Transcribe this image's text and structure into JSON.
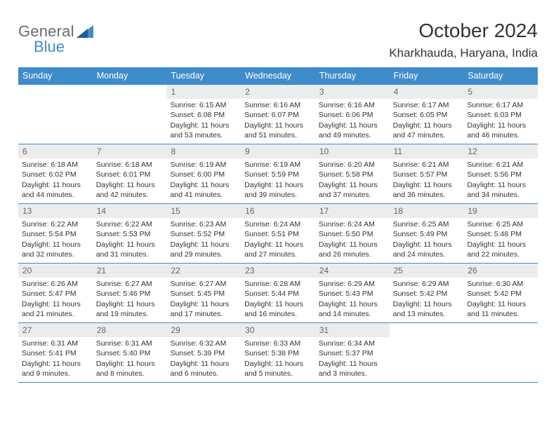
{
  "brand": {
    "part1": "General",
    "part2": "Blue"
  },
  "title": "October 2024",
  "location": "Kharkhauda, Haryana, India",
  "style": {
    "accent": "#3f8ccb",
    "daynum_bg": "#ececec",
    "daynum_color": "#666666",
    "text_color": "#333333",
    "logo_grey": "#6b6b6b",
    "background": "#ffffff",
    "title_fontsize": 28,
    "location_fontsize": 17,
    "weekday_fontsize": 12.5,
    "cell_fontsize": 10.5,
    "cell_min_height": 84
  },
  "weekdays": [
    "Sunday",
    "Monday",
    "Tuesday",
    "Wednesday",
    "Thursday",
    "Friday",
    "Saturday"
  ],
  "first_weekday_index": 2,
  "days": [
    {
      "n": 1,
      "sunrise": "6:15 AM",
      "sunset": "6:08 PM",
      "dl_h": 11,
      "dl_m": 53
    },
    {
      "n": 2,
      "sunrise": "6:16 AM",
      "sunset": "6:07 PM",
      "dl_h": 11,
      "dl_m": 51
    },
    {
      "n": 3,
      "sunrise": "6:16 AM",
      "sunset": "6:06 PM",
      "dl_h": 11,
      "dl_m": 49
    },
    {
      "n": 4,
      "sunrise": "6:17 AM",
      "sunset": "6:05 PM",
      "dl_h": 11,
      "dl_m": 47
    },
    {
      "n": 5,
      "sunrise": "6:17 AM",
      "sunset": "6:03 PM",
      "dl_h": 11,
      "dl_m": 46
    },
    {
      "n": 6,
      "sunrise": "6:18 AM",
      "sunset": "6:02 PM",
      "dl_h": 11,
      "dl_m": 44
    },
    {
      "n": 7,
      "sunrise": "6:18 AM",
      "sunset": "6:01 PM",
      "dl_h": 11,
      "dl_m": 42
    },
    {
      "n": 8,
      "sunrise": "6:19 AM",
      "sunset": "6:00 PM",
      "dl_h": 11,
      "dl_m": 41
    },
    {
      "n": 9,
      "sunrise": "6:19 AM",
      "sunset": "5:59 PM",
      "dl_h": 11,
      "dl_m": 39
    },
    {
      "n": 10,
      "sunrise": "6:20 AM",
      "sunset": "5:58 PM",
      "dl_h": 11,
      "dl_m": 37
    },
    {
      "n": 11,
      "sunrise": "6:21 AM",
      "sunset": "5:57 PM",
      "dl_h": 11,
      "dl_m": 36
    },
    {
      "n": 12,
      "sunrise": "6:21 AM",
      "sunset": "5:56 PM",
      "dl_h": 11,
      "dl_m": 34
    },
    {
      "n": 13,
      "sunrise": "6:22 AM",
      "sunset": "5:54 PM",
      "dl_h": 11,
      "dl_m": 32
    },
    {
      "n": 14,
      "sunrise": "6:22 AM",
      "sunset": "5:53 PM",
      "dl_h": 11,
      "dl_m": 31
    },
    {
      "n": 15,
      "sunrise": "6:23 AM",
      "sunset": "5:52 PM",
      "dl_h": 11,
      "dl_m": 29
    },
    {
      "n": 16,
      "sunrise": "6:24 AM",
      "sunset": "5:51 PM",
      "dl_h": 11,
      "dl_m": 27
    },
    {
      "n": 17,
      "sunrise": "6:24 AM",
      "sunset": "5:50 PM",
      "dl_h": 11,
      "dl_m": 26
    },
    {
      "n": 18,
      "sunrise": "6:25 AM",
      "sunset": "5:49 PM",
      "dl_h": 11,
      "dl_m": 24
    },
    {
      "n": 19,
      "sunrise": "6:25 AM",
      "sunset": "5:48 PM",
      "dl_h": 11,
      "dl_m": 22
    },
    {
      "n": 20,
      "sunrise": "6:26 AM",
      "sunset": "5:47 PM",
      "dl_h": 11,
      "dl_m": 21
    },
    {
      "n": 21,
      "sunrise": "6:27 AM",
      "sunset": "5:46 PM",
      "dl_h": 11,
      "dl_m": 19
    },
    {
      "n": 22,
      "sunrise": "6:27 AM",
      "sunset": "5:45 PM",
      "dl_h": 11,
      "dl_m": 17
    },
    {
      "n": 23,
      "sunrise": "6:28 AM",
      "sunset": "5:44 PM",
      "dl_h": 11,
      "dl_m": 16
    },
    {
      "n": 24,
      "sunrise": "6:29 AM",
      "sunset": "5:43 PM",
      "dl_h": 11,
      "dl_m": 14
    },
    {
      "n": 25,
      "sunrise": "6:29 AM",
      "sunset": "5:42 PM",
      "dl_h": 11,
      "dl_m": 13
    },
    {
      "n": 26,
      "sunrise": "6:30 AM",
      "sunset": "5:42 PM",
      "dl_h": 11,
      "dl_m": 11
    },
    {
      "n": 27,
      "sunrise": "6:31 AM",
      "sunset": "5:41 PM",
      "dl_h": 11,
      "dl_m": 9
    },
    {
      "n": 28,
      "sunrise": "6:31 AM",
      "sunset": "5:40 PM",
      "dl_h": 11,
      "dl_m": 8
    },
    {
      "n": 29,
      "sunrise": "6:32 AM",
      "sunset": "5:39 PM",
      "dl_h": 11,
      "dl_m": 6
    },
    {
      "n": 30,
      "sunrise": "6:33 AM",
      "sunset": "5:38 PM",
      "dl_h": 11,
      "dl_m": 5
    },
    {
      "n": 31,
      "sunrise": "6:34 AM",
      "sunset": "5:37 PM",
      "dl_h": 11,
      "dl_m": 3
    }
  ],
  "labels": {
    "sunrise": "Sunrise:",
    "sunset": "Sunset:",
    "daylight_prefix": "Daylight:",
    "hours_word": "hours",
    "and_word": "and",
    "minutes_word": "minutes."
  }
}
